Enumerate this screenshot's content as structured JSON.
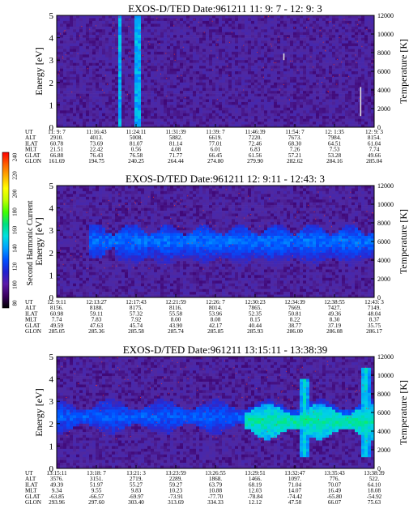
{
  "colorbar": {
    "label": "Second Harmonic Current",
    "ticks": [
      "240",
      "220",
      "200",
      "180",
      "160",
      "140",
      "120",
      "100",
      "80"
    ],
    "colors": [
      "#000000",
      "#3a0060",
      "#5a1aa8",
      "#2020d0",
      "#0050ff",
      "#00a0ff",
      "#00e0e0",
      "#00e080",
      "#40ff00",
      "#c0ff00",
      "#ffff00",
      "#ffb000",
      "#ff6000",
      "#ff0000"
    ]
  },
  "panels": [
    {
      "title": "EXOS-D/TED   Date:961211  11: 9: 7 - 12: 9: 3",
      "ylabel_left": "Energy [eV]",
      "ylabel_right": "Temperature [K]",
      "left_ticks": [
        "5",
        "4",
        "3",
        "2",
        "1",
        "0"
      ],
      "right_ticks": [
        "12000",
        "10000",
        "8000",
        "6000",
        "4000",
        "2000",
        "0"
      ],
      "row_labels": [
        "UT",
        "ALT",
        "ILAT",
        "MLT",
        "GLAT",
        "GLON"
      ],
      "columns": [
        [
          "11: 9: 7",
          "2910.",
          "60.78",
          "21.51",
          "66.88",
          "161.69"
        ],
        [
          "11:16:43",
          "4013.",
          "73.69",
          "22.42",
          "76.43",
          "194.75"
        ],
        [
          "11:24:11",
          "5008.",
          "81.07",
          "0.56",
          "76.58",
          "240.25"
        ],
        [
          "11:31:39",
          "5882.",
          "81.14",
          "4.08",
          "71.77",
          "264.44"
        ],
        [
          "11:39: 7",
          "6619.",
          "77.01",
          "6.01",
          "66.45",
          "274.80"
        ],
        [
          "11:46:39",
          "7220.",
          "72.46",
          "6.83",
          "61.56",
          "279.90"
        ],
        [
          "11:54: 7",
          "7673.",
          "68.30",
          "7.26",
          "57.21",
          "282.62"
        ],
        [
          "12: 1:35",
          "7984.",
          "64.51",
          "7.53",
          "53.28",
          "284.16"
        ],
        [
          "12: 9: 3",
          "8154.",
          "61.04",
          "7.74",
          "49.66",
          "285.04"
        ]
      ]
    },
    {
      "title": "EXOS-D/TED   Date:961211  12: 9:11 - 12:43: 3",
      "ylabel_left": "Energy [eV]",
      "ylabel_right": "Temperature [K]",
      "left_ticks": [
        "5",
        "4",
        "3",
        "2",
        "1",
        "0"
      ],
      "right_ticks": [
        "12000",
        "10000",
        "8000",
        "6000",
        "4000",
        "2000",
        "0"
      ],
      "row_labels": [
        "UT",
        "ALT",
        "ILAT",
        "MLT",
        "GLAT",
        "GLON"
      ],
      "columns": [
        [
          "12: 9:11",
          "8156.",
          "60.98",
          "7.74",
          "49.59",
          "285.05"
        ],
        [
          "12:13:27",
          "8188.",
          "59.11",
          "7.83",
          "47.63",
          "285.36"
        ],
        [
          "12:17:43",
          "8175.",
          "57.32",
          "7.92",
          "45.74",
          "285.58"
        ],
        [
          "12:21:59",
          "8116.",
          "55.58",
          "8.00",
          "43.90",
          "285.74"
        ],
        [
          "12:26: 7",
          "8014.",
          "53.96",
          "8.08",
          "42.17",
          "285.85"
        ],
        [
          "12:30:23",
          "7865.",
          "52.35",
          "8.15",
          "40.44",
          "285.93"
        ],
        [
          "12:34:39",
          "7669.",
          "50.81",
          "8.22",
          "38.77",
          "286.00"
        ],
        [
          "12:38:55",
          "7427.",
          "49.36",
          "8.30",
          "37.19",
          "286.08"
        ],
        [
          "12:43: 3",
          "7149.",
          "48.04",
          "8.37",
          "35.75",
          "286.17"
        ]
      ]
    },
    {
      "title": "EXOS-D/TED   Date:961211  13:15:11 - 13:38:39",
      "ylabel_left": "Energy [eV]",
      "ylabel_right": "Temperature [K]",
      "left_ticks": [
        "5",
        "4",
        "3",
        "2",
        "1",
        "0"
      ],
      "right_ticks": [
        "12000",
        "10000",
        "8000",
        "6000",
        "4000",
        "2000",
        "0"
      ],
      "row_labels": [
        "UT",
        "ALT",
        "ILAT",
        "MLT",
        "GLAT",
        "GLON"
      ],
      "columns": [
        [
          "13:15:11",
          "3576.",
          "49.39",
          "9.34",
          "-63.85",
          "293.96"
        ],
        [
          "13:18: 7",
          "3151.",
          "51.97",
          "9.55",
          "-66.57",
          "297.60"
        ],
        [
          "13:21: 3",
          "2719.",
          "55.27",
          "9.83",
          "-69.97",
          "303.40"
        ],
        [
          "13:23:59",
          "2289.",
          "59.27",
          "10.23",
          "-73.91",
          "313.69"
        ],
        [
          "13:26:55",
          "1868.",
          "63.79",
          "10.88",
          "-77.70",
          "334.33"
        ],
        [
          "13:29:51",
          "1466.",
          "68.19",
          "12.03",
          "-78.84",
          "12.12"
        ],
        [
          "13:32:47",
          "1097.",
          "71.04",
          "14.07",
          "-74.42",
          "47.58"
        ],
        [
          "13:35:43",
          "776.",
          "70.07",
          "16.49",
          "-65.80",
          "66.07"
        ],
        [
          "13:38:39",
          "522.",
          "64.10",
          "18.08",
          "-54.92",
          "75.63"
        ]
      ]
    }
  ],
  "chart_data": [
    {
      "type": "heatmap",
      "title": "EXOS-D/TED   Date:961211  11: 9: 7 - 12: 9: 3",
      "xlabel": "UT",
      "ylabel": "Energy [eV]",
      "ylabel_right": "Temperature [K]",
      "ylim": [
        0,
        5
      ],
      "ylim_right": [
        0,
        12000
      ],
      "x_ticks": [
        "11: 9: 7",
        "11:16:43",
        "11:24:11",
        "11:31:39",
        "11:39: 7",
        "11:46:39",
        "11:54: 7",
        "12: 1:35",
        "12: 9: 3"
      ],
      "background_level": 100,
      "features": [
        {
          "kind": "vertical-band",
          "x_start": "11:20:30",
          "x_end": "11:21:30",
          "level": 160
        },
        {
          "kind": "vertical-band",
          "x_start": "11:23:30",
          "x_end": "11:24:45",
          "level": 160
        },
        {
          "kind": "vertical-line",
          "x": "11:52:00",
          "energy_range": [
            3.0,
            3.3
          ],
          "level": 230
        },
        {
          "kind": "vertical-line",
          "x": "12: 6:30",
          "energy_range": [
            0.5,
            1.8
          ],
          "level": 230
        }
      ]
    },
    {
      "type": "heatmap",
      "title": "EXOS-D/TED   Date:961211  12: 9:11 - 12:43: 3",
      "xlabel": "UT",
      "ylabel": "Energy [eV]",
      "ylabel_right": "Temperature [K]",
      "ylim": [
        0,
        5
      ],
      "ylim_right": [
        0,
        12000
      ],
      "x_ticks": [
        "12: 9:11",
        "12:13:27",
        "12:17:43",
        "12:21:59",
        "12:26: 7",
        "12:30:23",
        "12:34:39",
        "12:38:55",
        "12:43: 3"
      ],
      "background_level": 100,
      "features": [
        {
          "kind": "horizontal-band",
          "x_start": "12:12:30",
          "x_end": "12:43: 3",
          "energy_center": 2.5,
          "level": 145
        },
        {
          "kind": "horizontal-band",
          "x_start": "12:15:30",
          "x_end": "12:43: 3",
          "energy_center": 2.1,
          "level": 130
        }
      ]
    },
    {
      "type": "heatmap",
      "title": "EXOS-D/TED   Date:961211  13:15:11 - 13:38:39",
      "xlabel": "UT",
      "ylabel": "Energy [eV]",
      "ylabel_right": "Temperature [K]",
      "ylim": [
        0,
        5
      ],
      "ylim_right": [
        0,
        12000
      ],
      "x_ticks": [
        "13:15:11",
        "13:18: 7",
        "13:21: 3",
        "13:23:59",
        "13:26:55",
        "13:29:51",
        "13:32:47",
        "13:35:43",
        "13:38:39"
      ],
      "background_level": 100,
      "features": [
        {
          "kind": "horizontal-band",
          "x_start": "13:15:11",
          "x_end": "13:38:39",
          "energy_center": 2.3,
          "level": 140
        },
        {
          "kind": "horizontal-band",
          "x_start": "13:29:00",
          "x_end": "13:38:39",
          "energy_center": 2.1,
          "level": 180
        },
        {
          "kind": "vertical-spike",
          "x": "13:33:30",
          "energy_range": [
            0.5,
            4.0
          ],
          "level": 170
        },
        {
          "kind": "vertical-spike",
          "x": "13:38:00",
          "energy_range": [
            0.5,
            4.5
          ],
          "level": 170
        }
      ]
    }
  ]
}
